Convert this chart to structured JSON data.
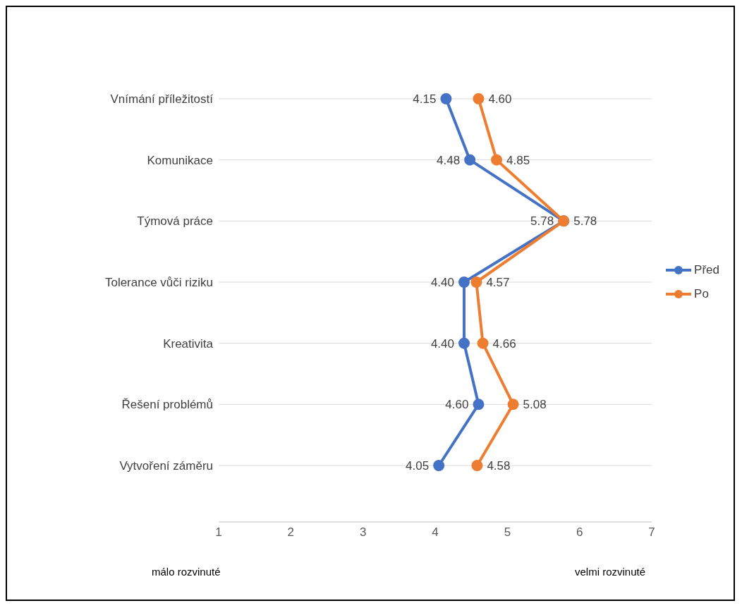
{
  "chart_data": {
    "type": "line",
    "categories": [
      "Vnímání příležitostí",
      "Komunikace",
      "Týmová práce",
      "Tolerance vůči riziku",
      "Kreativita",
      "Řešení problémů",
      "Vytvoření záměru"
    ],
    "series": [
      {
        "name": "Před",
        "color": "#4472c4",
        "values": [
          4.15,
          4.48,
          5.78,
          4.4,
          4.4,
          4.6,
          4.05
        ],
        "value_labels": [
          "4.15",
          "4.48",
          "5.78",
          "4.40",
          "4.40",
          "4.60",
          "4.05"
        ]
      },
      {
        "name": "Po",
        "color": "#ed7d31",
        "values": [
          4.6,
          4.85,
          5.78,
          4.57,
          4.66,
          5.08,
          4.58
        ],
        "value_labels": [
          "4.60",
          "4.85",
          "5.78",
          "4.57",
          "4.66",
          "5.08",
          "4.58"
        ]
      }
    ],
    "orientation": "horizontal",
    "xlim": [
      1,
      7
    ],
    "xticks": [
      1,
      2,
      3,
      4,
      5,
      6,
      7
    ],
    "grid": "y",
    "legend": "right",
    "marker": "circle",
    "line_style": "solid",
    "annotations": [
      "málo rozvinuté",
      "velmi rozvinuté"
    ]
  }
}
